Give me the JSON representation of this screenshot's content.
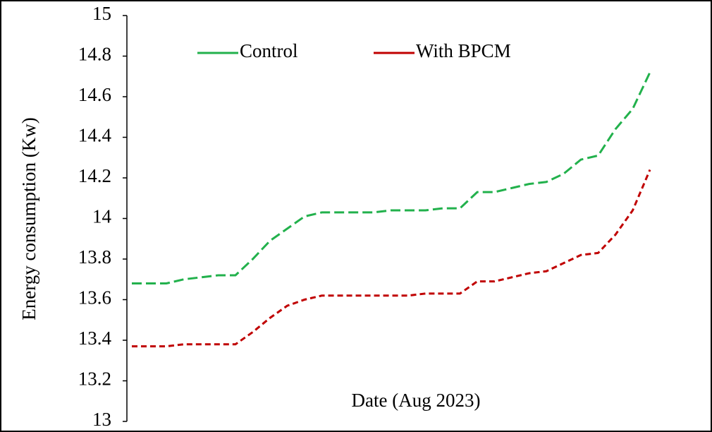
{
  "chart_data": {
    "type": "line",
    "xlabel": "Date (Aug 2023)",
    "ylabel": "Energy consumption (Kw)",
    "categories": [
      null,
      null,
      null,
      null,
      null,
      null,
      null,
      null,
      null,
      null,
      null,
      null,
      null,
      null,
      null,
      null,
      null,
      null,
      null,
      null,
      null,
      null,
      null,
      null,
      null,
      null,
      null,
      null,
      null,
      null,
      null
    ],
    "series": [
      {
        "name": "Control",
        "color": "#22b14c",
        "values": [
          13.68,
          13.68,
          13.68,
          13.7,
          13.71,
          13.72,
          13.72,
          13.8,
          13.89,
          13.95,
          14.01,
          14.03,
          14.03,
          14.03,
          14.03,
          14.04,
          14.04,
          14.04,
          14.05,
          14.05,
          14.13,
          14.13,
          14.15,
          14.17,
          14.18,
          14.22,
          14.29,
          14.31,
          14.44,
          14.54,
          14.72
        ]
      },
      {
        "name": "With BPCM",
        "color": "#c00000",
        "values": [
          13.37,
          13.37,
          13.37,
          13.38,
          13.38,
          13.38,
          13.38,
          13.44,
          13.51,
          13.57,
          13.6,
          13.62,
          13.62,
          13.62,
          13.62,
          13.62,
          13.62,
          13.63,
          13.63,
          13.63,
          13.69,
          13.69,
          13.71,
          13.73,
          13.74,
          13.78,
          13.82,
          13.83,
          13.92,
          14.04,
          14.24
        ]
      }
    ],
    "ylim": [
      13,
      15
    ],
    "yticks": [
      13,
      13.2,
      13.4,
      13.6,
      13.8,
      14,
      14.2,
      14.4,
      14.6,
      14.8,
      15
    ],
    "grid": false,
    "legend": "top"
  }
}
